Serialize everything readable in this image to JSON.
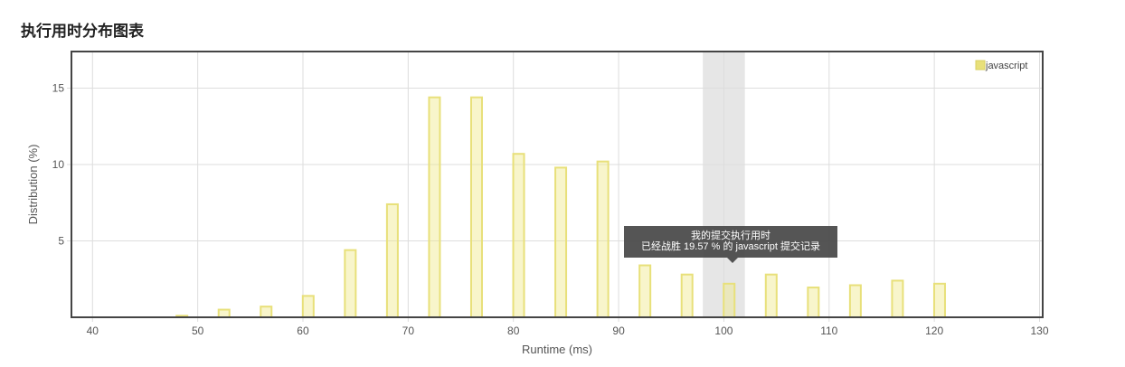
{
  "page_title": "执行用时分布图表",
  "tooltip": {
    "line1": "我的提交执行用时",
    "line2": "已经战胜 19.57 % 的 javascript 提交记录"
  },
  "chart_data": {
    "type": "bar",
    "xlabel": "Runtime (ms)",
    "ylabel": "Distribution (%)",
    "xlim": [
      38,
      130.3
    ],
    "ylim": [
      0,
      17.4
    ],
    "xticks": [
      40,
      50,
      60,
      70,
      80,
      90,
      100,
      110,
      120,
      130
    ],
    "yticks": [
      5,
      10,
      15
    ],
    "grid": true,
    "legend": "top-right",
    "series": [
      {
        "name": "javascript",
        "color": "#e8e07a",
        "x": [
          48.5,
          52.5,
          56.5,
          60.5,
          64.5,
          68.5,
          72.5,
          76.5,
          80.5,
          84.5,
          88.5,
          92.5,
          96.5,
          100.5,
          104.5,
          108.5,
          112.5,
          116.5,
          120.5
        ],
        "values": [
          0.1,
          0.5,
          0.7,
          1.4,
          4.4,
          7.4,
          14.4,
          14.4,
          10.7,
          9.8,
          10.2,
          3.4,
          2.8,
          2.2,
          2.8,
          1.95,
          2.1,
          2.4,
          2.2
        ]
      }
    ],
    "highlight_range": [
      98,
      102
    ]
  }
}
